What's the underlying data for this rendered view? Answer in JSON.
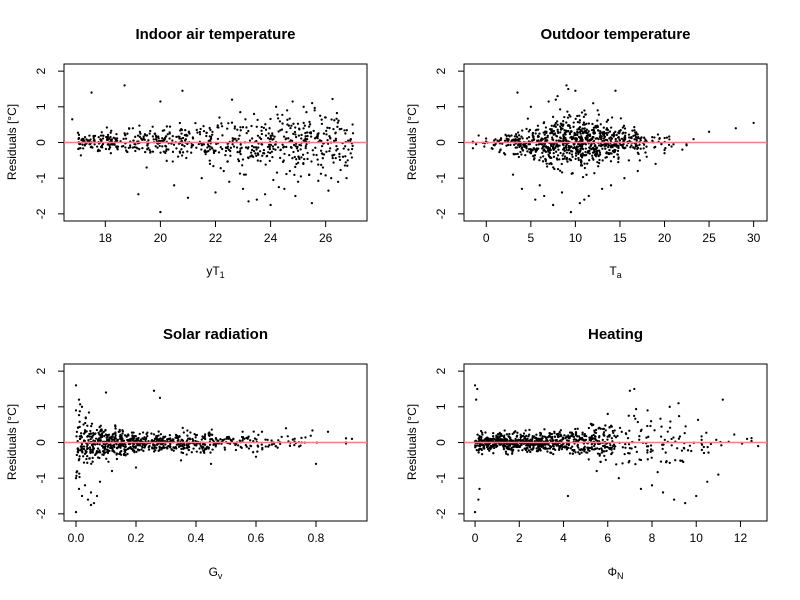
{
  "chart_data": [
    {
      "type": "scatter",
      "title": "Indoor air temperature",
      "xlabel": "yT",
      "xlabel_sub": "1",
      "ylabel": "Residuals [°C]",
      "xlim": [
        16.5,
        27.5
      ],
      "ylim": [
        -2.2,
        2.2
      ],
      "xticks": [
        18,
        20,
        22,
        24,
        26
      ],
      "yticks": [
        -2,
        -1,
        0,
        1,
        2
      ],
      "reference_line": {
        "y": 0,
        "color": "#f08080"
      },
      "x": [
        16.8,
        17.5,
        18.7,
        20.8,
        20.0,
        22.6,
        24.2,
        24.8,
        25.2,
        25.6,
        26.0,
        19.2,
        20.5,
        21.5,
        22.3,
        23.0,
        23.5,
        24.0,
        24.5,
        25.0,
        25.5,
        26.2,
        26.8,
        20.0,
        21.0,
        22.0,
        23.2,
        23.8,
        24.3,
        24.9,
        25.4,
        26.1,
        22.9,
        23.4,
        24.6,
        25.3,
        25.8,
        19.5,
        21.8,
        23.1,
        24.1,
        24.7,
        25.1,
        25.9,
        26.5,
        18.2,
        19.0,
        22.5
      ],
      "y": [
        0.65,
        1.4,
        1.6,
        1.45,
        1.15,
        1.2,
        1.0,
        1.15,
        1.0,
        0.9,
        0.7,
        -1.45,
        -1.2,
        -1.0,
        -0.8,
        -1.3,
        -1.6,
        -1.75,
        -1.3,
        -1.1,
        -1.7,
        -1.0,
        -0.5,
        -1.95,
        -1.55,
        -1.4,
        -1.65,
        -1.45,
        -1.25,
        -1.5,
        -0.9,
        -1.35,
        0.85,
        0.8,
        0.9,
        0.85,
        0.75,
        -0.7,
        -0.6,
        -0.9,
        -1.05,
        -0.8,
        -0.95,
        -0.7,
        -0.4,
        -0.3,
        0.4,
        -1.1
      ],
      "dense_band": {
        "x_range": [
          17.0,
          27.0
        ],
        "y_center": 0.0,
        "y_halfwidth_start": 0.1,
        "y_halfwidth_end": 0.45,
        "count": 700
      }
    },
    {
      "type": "scatter",
      "title": "Outdoor temperature",
      "xlabel": "T",
      "xlabel_sub": "a",
      "ylabel": "Residuals [°C]",
      "xlim": [
        -2.5,
        31.5
      ],
      "ylim": [
        -2.2,
        2.2
      ],
      "xticks": [
        0,
        5,
        10,
        15,
        20,
        25,
        30
      ],
      "yticks": [
        -2,
        -1,
        0,
        1,
        2
      ],
      "reference_line": {
        "y": 0,
        "color": "#f08080"
      },
      "x": [
        3.5,
        5.0,
        7.0,
        8.0,
        9.0,
        10.0,
        12.0,
        14.5,
        4.0,
        5.5,
        6.5,
        7.5,
        8.5,
        9.5,
        10.5,
        11.5,
        13.0,
        14.0,
        15.5,
        17.0,
        19.0,
        25.0,
        28.0,
        30.0,
        2.0,
        3.0,
        6.0,
        11.0,
        16.0,
        18.0,
        20.0,
        22.0,
        9.2,
        7.8,
        12.5
      ],
      "y": [
        1.4,
        1.0,
        1.15,
        1.3,
        1.6,
        1.45,
        1.1,
        1.45,
        -1.3,
        -1.6,
        -1.5,
        -1.75,
        -1.4,
        -1.95,
        -1.7,
        -1.5,
        -1.3,
        -1.2,
        -1.0,
        -0.8,
        -0.6,
        0.3,
        0.4,
        0.55,
        -0.3,
        -0.9,
        -1.2,
        -1.6,
        -0.5,
        -0.4,
        -0.3,
        -0.2,
        1.5,
        1.2,
        0.9
      ],
      "dense_band": {
        "x_range": [
          -1.5,
          31.0
        ],
        "y_center": 0.0,
        "peak_x": 10.0,
        "count": 900
      }
    },
    {
      "type": "scatter",
      "title": "Solar radiation",
      "xlabel": "G",
      "xlabel_sub": "v",
      "ylabel": "Residuals [°C]",
      "xlim": [
        -0.04,
        0.97
      ],
      "ylim": [
        -2.2,
        2.2
      ],
      "xticks": [
        0.0,
        0.2,
        0.4,
        0.6,
        0.8
      ],
      "xtick_labels": [
        "0.0",
        "0.2",
        "0.4",
        "0.6",
        "0.8"
      ],
      "yticks": [
        -2,
        -1,
        0,
        1,
        2
      ],
      "reference_line": {
        "y": 0,
        "color": "#f08080"
      },
      "x": [
        0.0,
        0.01,
        0.0,
        0.02,
        0.05,
        0.1,
        0.26,
        0.28,
        0.0,
        0.01,
        0.03,
        0.04,
        0.05,
        0.06,
        0.07,
        0.08,
        0.0,
        0.02,
        0.12,
        0.2,
        0.35,
        0.45,
        0.6,
        0.8,
        0.92,
        0.62,
        0.7,
        0.84
      ],
      "y": [
        1.6,
        1.2,
        -1.95,
        -1.5,
        -1.75,
        1.4,
        1.45,
        1.25,
        -1.0,
        -1.3,
        -1.2,
        -1.6,
        -1.4,
        -1.7,
        -1.5,
        -1.1,
        0.9,
        1.0,
        -0.8,
        -0.7,
        -0.5,
        -0.6,
        -0.4,
        -0.6,
        0.1,
        0.3,
        0.4,
        0.3
      ],
      "dense_band": {
        "x_range": [
          0.0,
          0.9
        ],
        "y_center": 0.0,
        "peak_x": 0.0,
        "count": 800
      }
    },
    {
      "type": "scatter",
      "title": "Heating",
      "xlabel": "Φ",
      "xlabel_sub": "N",
      "ylabel": "Residuals [°C]",
      "xlim": [
        -0.5,
        13.2
      ],
      "ylim": [
        -2.2,
        2.2
      ],
      "xticks": [
        0,
        2,
        4,
        6,
        8,
        10,
        12
      ],
      "yticks": [
        -2,
        -1,
        0,
        1,
        2
      ],
      "reference_line": {
        "y": 0,
        "color": "#f08080"
      },
      "x": [
        0.0,
        0.05,
        0.1,
        0.0,
        0.15,
        0.2,
        7.0,
        7.2,
        11.2,
        9.0,
        8.5,
        9.5,
        10.0,
        7.5,
        8.0,
        6.5,
        5.5,
        4.2,
        10.5,
        11.0,
        9.2,
        8.8,
        6.0,
        7.8,
        12.3,
        12.8
      ],
      "y": [
        1.6,
        1.2,
        1.5,
        -1.95,
        -1.6,
        -1.3,
        1.45,
        1.5,
        1.2,
        -1.6,
        -1.4,
        -1.7,
        -1.5,
        -1.3,
        -1.2,
        -1.0,
        -0.8,
        -1.5,
        -1.1,
        -0.9,
        1.1,
        1.0,
        0.8,
        0.9,
        0.1,
        -0.1
      ],
      "dense_band": {
        "x_range": [
          0.0,
          12.5
        ],
        "y_center": 0.0,
        "peak_x": 0.0,
        "count": 900
      }
    }
  ]
}
